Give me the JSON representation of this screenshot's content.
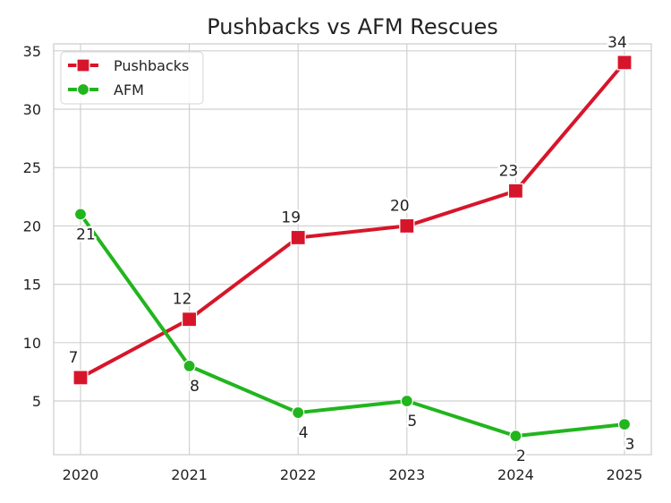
{
  "chart_data": {
    "type": "line",
    "title": "Pushbacks vs AFM Rescues",
    "xlabel": "",
    "ylabel": "",
    "categories": [
      "2020",
      "2021",
      "2022",
      "2023",
      "2024",
      "2025"
    ],
    "y_ticks": [
      5,
      10,
      15,
      20,
      25,
      30,
      35
    ],
    "ylim": [
      0.4,
      35.6
    ],
    "grid": true,
    "legend_position": "top-left",
    "series": [
      {
        "name": "Pushbacks",
        "values": [
          7,
          12,
          19,
          20,
          23,
          34
        ],
        "color": "#d7152a",
        "marker": "square",
        "label_position": "above"
      },
      {
        "name": "AFM",
        "values": [
          21,
          8,
          4,
          5,
          2,
          3
        ],
        "color": "#22b51e",
        "marker": "circle",
        "label_position": "below"
      }
    ]
  }
}
